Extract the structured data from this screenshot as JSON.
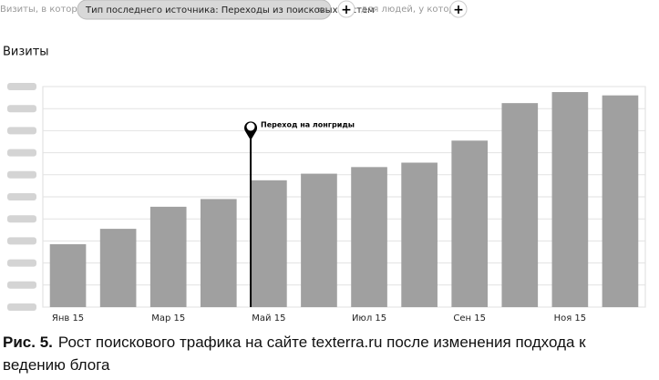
{
  "filter": {
    "prefix": "Визиты, в которых",
    "pill": "Тип последнего источника: Переходы из поисковых систем",
    "suffix": "для людей, у которых"
  },
  "chart_data": {
    "type": "bar",
    "title": "Визиты",
    "categories": [
      "Янв 15",
      null,
      "Мар 15",
      null,
      "Май 15",
      null,
      "Июл 15",
      null,
      "Сен 15",
      null,
      "Ноя 15",
      null
    ],
    "values": [
      2.85,
      3.55,
      4.55,
      4.9,
      5.75,
      6.05,
      6.35,
      6.55,
      7.55,
      9.25,
      9.75,
      9.6
    ],
    "color": "#a0a0a0",
    "ylim": [
      0,
      10
    ],
    "yticks": [
      0,
      1,
      2,
      3,
      4,
      5,
      6,
      7,
      8,
      9,
      10
    ],
    "grid": true,
    "annotation": "Переход на лонгриды"
  },
  "caption": {
    "label": "Рис. 5.",
    "text": "Рост поискового трафика на сайте texterra.ru после изменения подхода к ведению блога"
  }
}
